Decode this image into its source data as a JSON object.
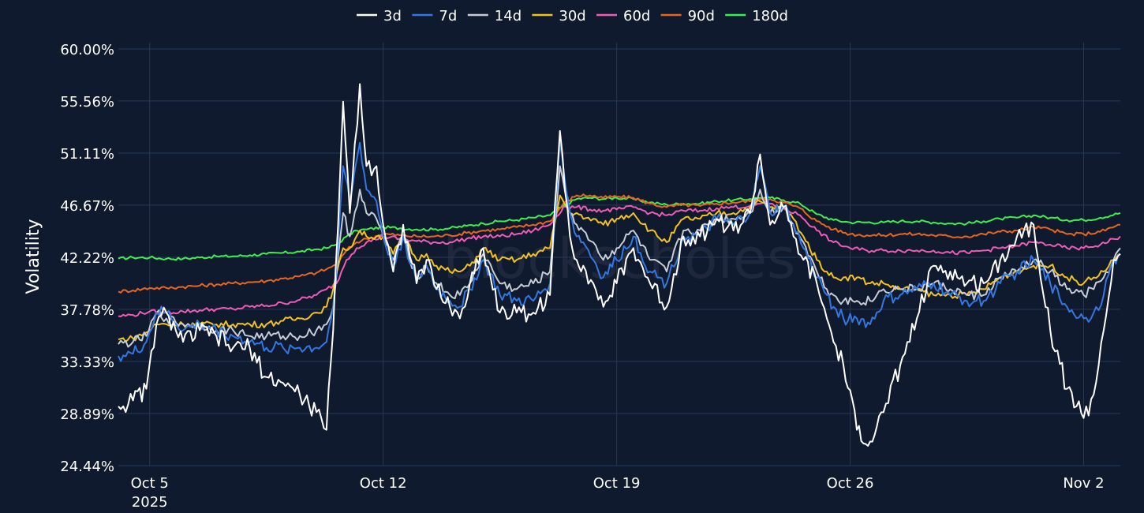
{
  "chart_data": {
    "type": "line",
    "title": "",
    "watermark": "blockscholes",
    "xlabel": "",
    "ylabel": "Volatility",
    "x_range": [
      4.06,
      34.1
    ],
    "ylim": [
      24.44,
      60.0
    ],
    "y_ticks": [
      {
        "value": 60.0,
        "label": "60.00%"
      },
      {
        "value": 55.56,
        "label": "55.56%"
      },
      {
        "value": 51.11,
        "label": "51.11%"
      },
      {
        "value": 46.67,
        "label": "46.67%"
      },
      {
        "value": 42.22,
        "label": "42.22%"
      },
      {
        "value": 37.78,
        "label": "37.78%"
      },
      {
        "value": 33.33,
        "label": "33.33%"
      },
      {
        "value": 28.89,
        "label": "28.89%"
      },
      {
        "value": 24.44,
        "label": "24.44%"
      }
    ],
    "x_ticks": [
      {
        "value": 5,
        "label": "Oct 5",
        "sublabel": "2025"
      },
      {
        "value": 12,
        "label": "Oct 12",
        "sublabel": ""
      },
      {
        "value": 19,
        "label": "Oct 19",
        "sublabel": ""
      },
      {
        "value": 26,
        "label": "Oct 26",
        "sublabel": ""
      },
      {
        "value": 33,
        "label": "Nov 2",
        "sublabel": ""
      }
    ],
    "x_unit": "day of October 2025",
    "legend_position": "top-center",
    "grid": true,
    "series": [
      {
        "name": "3d",
        "color": "#ffffff",
        "x": [
          4.06,
          4.5,
          4.9,
          5.2,
          5.5,
          6,
          6.5,
          7,
          7.5,
          8,
          8.5,
          9,
          9.5,
          10,
          10.3,
          10.5,
          10.8,
          11,
          11.3,
          11.5,
          11.8,
          12,
          12.3,
          12.6,
          13,
          13.3,
          13.6,
          14,
          14.3,
          14.6,
          15,
          15.5,
          16,
          16.5,
          17,
          17.3,
          17.6,
          17.8,
          18,
          18.3,
          18.6,
          19,
          19.5,
          20,
          20.5,
          21,
          21.5,
          22,
          22.5,
          23,
          23.3,
          23.6,
          24,
          24.3,
          24.6,
          25,
          25.3,
          25.5,
          25.8,
          26.2,
          26.6,
          27,
          27.5,
          28,
          28.5,
          29,
          29.5,
          30,
          30.5,
          31,
          31.5,
          32,
          32.5,
          33,
          33.3,
          33.6,
          33.9,
          34.1
        ],
        "values": [
          29.5,
          30,
          31,
          36.5,
          37.5,
          35,
          36,
          35.5,
          34.5,
          34.5,
          32,
          31.5,
          30.5,
          29,
          27.5,
          36,
          55.5,
          46,
          57,
          50,
          50,
          45,
          41,
          45,
          40,
          42,
          39.5,
          38,
          37,
          40,
          43,
          37.5,
          37.5,
          37.5,
          39,
          53,
          44,
          42,
          41.5,
          40,
          38,
          40,
          43,
          40,
          38,
          44,
          44,
          45.5,
          44.5,
          46,
          51,
          45,
          46.5,
          44,
          42,
          40,
          37,
          35,
          33,
          27.5,
          26.5,
          29,
          33,
          37,
          41.5,
          41,
          40,
          40,
          42,
          44,
          45,
          36,
          31,
          28.5,
          30.5,
          36,
          42,
          42.5
        ]
      },
      {
        "name": "7d",
        "color": "#3377e0",
        "x": [
          4.06,
          4.5,
          4.9,
          5.2,
          5.5,
          6,
          6.5,
          7,
          7.5,
          8,
          8.5,
          9,
          9.5,
          10,
          10.3,
          10.5,
          10.8,
          11,
          11.3,
          11.5,
          11.8,
          12,
          12.3,
          12.6,
          13,
          13.3,
          13.6,
          14,
          14.3,
          14.6,
          15,
          15.5,
          16,
          16.5,
          17,
          17.3,
          17.6,
          17.8,
          18,
          18.3,
          18.6,
          19,
          19.5,
          20,
          20.5,
          21,
          21.5,
          22,
          22.5,
          23,
          23.3,
          23.6,
          24,
          24.3,
          24.6,
          25,
          25.3,
          25.5,
          25.8,
          26.2,
          26.6,
          27,
          27.5,
          28,
          28.5,
          29,
          29.5,
          30,
          30.5,
          31,
          31.5,
          32,
          32.5,
          33,
          33.3,
          33.6,
          33.9,
          34.1
        ],
        "values": [
          33.8,
          34,
          35,
          37.5,
          37.5,
          36,
          36.5,
          36,
          35.5,
          35,
          34.5,
          34.5,
          34.5,
          34.5,
          35,
          38,
          50,
          47,
          52,
          48,
          47,
          44,
          41.5,
          44,
          40,
          41.5,
          39.5,
          38.5,
          38,
          39.5,
          42,
          39,
          38.5,
          38.5,
          40,
          52,
          46,
          44,
          43.5,
          42,
          40.5,
          42,
          44,
          41,
          40,
          44,
          44,
          45.5,
          45,
          46,
          50,
          46,
          46.5,
          45,
          43,
          40.5,
          39,
          38,
          37,
          37,
          36.5,
          38.5,
          39,
          39.5,
          40,
          39,
          38.5,
          38.5,
          40,
          41,
          42,
          40,
          38,
          37,
          37.5,
          39,
          42,
          42.5
        ]
      },
      {
        "name": "14d",
        "color": "#c6ccd6",
        "x": [
          4.06,
          4.5,
          4.9,
          5.2,
          5.5,
          6,
          6.5,
          7,
          7.5,
          8,
          8.5,
          9,
          9.5,
          10,
          10.3,
          10.5,
          10.8,
          11,
          11.3,
          11.5,
          11.8,
          12,
          12.3,
          12.6,
          13,
          13.3,
          13.6,
          14,
          14.3,
          14.6,
          15,
          15.5,
          16,
          16.5,
          17,
          17.3,
          17.6,
          17.8,
          18,
          18.3,
          18.6,
          19,
          19.5,
          20,
          20.5,
          21,
          21.5,
          22,
          22.5,
          23,
          23.3,
          23.6,
          24,
          24.3,
          24.6,
          25,
          25.3,
          25.5,
          25.8,
          26.2,
          26.6,
          27,
          27.5,
          28,
          28.5,
          29,
          29.5,
          30,
          30.5,
          31,
          31.5,
          32,
          32.5,
          33,
          33.3,
          33.6,
          33.9,
          34.1
        ],
        "values": [
          34.8,
          35,
          35.5,
          37.5,
          37,
          36.5,
          36.5,
          36,
          36,
          35.5,
          35.5,
          35.5,
          35.5,
          36,
          36.5,
          38,
          46,
          44,
          48,
          46,
          45.5,
          44,
          42,
          44,
          40.5,
          41.5,
          40,
          39,
          39,
          40,
          42.5,
          40,
          39.5,
          40,
          41,
          50,
          46,
          45,
          44.5,
          43.5,
          42,
          43,
          44.5,
          42,
          41,
          44.5,
          44.5,
          45.5,
          45.5,
          46,
          48,
          46,
          46.5,
          45,
          43.5,
          41,
          39.5,
          39,
          38.5,
          38.5,
          38.5,
          39.5,
          39.5,
          39.5,
          40,
          39.5,
          39,
          39,
          40.5,
          41,
          42,
          41,
          39.5,
          39,
          39.5,
          40.5,
          42,
          43
        ]
      },
      {
        "name": "30d",
        "color": "#f2c21b",
        "x": [
          4.06,
          4.5,
          4.9,
          5.2,
          5.5,
          6,
          6.5,
          7,
          7.5,
          8,
          8.5,
          9,
          9.5,
          10,
          10.3,
          10.5,
          10.8,
          11,
          11.3,
          11.5,
          11.8,
          12,
          12.3,
          12.6,
          13,
          13.3,
          13.6,
          14,
          14.3,
          14.6,
          15,
          15.5,
          16,
          16.5,
          17,
          17.3,
          17.6,
          17.8,
          18,
          18.3,
          18.6,
          19,
          19.5,
          20,
          20.5,
          21,
          21.5,
          22,
          22.5,
          23,
          23.3,
          23.6,
          24,
          24.3,
          24.6,
          25,
          25.3,
          25.5,
          25.8,
          26.2,
          26.6,
          27,
          27.5,
          28,
          28.5,
          29,
          29.5,
          30,
          30.5,
          31,
          31.5,
          32,
          32.5,
          33,
          33.3,
          33.6,
          33.9,
          34.1
        ],
        "values": [
          35.2,
          35.3,
          35.8,
          36.5,
          36.5,
          36.5,
          36.5,
          36.5,
          36.5,
          36.5,
          36.5,
          36.8,
          37,
          37.5,
          38,
          39.5,
          43,
          43,
          44.5,
          44,
          44,
          44,
          42.5,
          44,
          42,
          42.5,
          41.5,
          41,
          41,
          41.5,
          43,
          42,
          42,
          42.5,
          43,
          47.5,
          46,
          46,
          45.5,
          45.5,
          45,
          45.5,
          46,
          44.5,
          43.5,
          45.5,
          45.5,
          46,
          46,
          46.5,
          47,
          46.5,
          46.5,
          45.5,
          44,
          42,
          41,
          40.5,
          40.5,
          40.5,
          40,
          40,
          39.5,
          39.5,
          39,
          39,
          39,
          39.5,
          40.5,
          41,
          41.5,
          41.5,
          40.5,
          40,
          40.5,
          41,
          42,
          42.5
        ]
      },
      {
        "name": "60d",
        "color": "#f05bb5",
        "x": [
          4.06,
          4.5,
          5,
          5.5,
          6,
          6.5,
          7,
          7.5,
          8,
          8.5,
          9,
          9.5,
          10,
          10.3,
          10.6,
          10.9,
          11.2,
          11.5,
          12,
          12.5,
          13,
          13.5,
          14,
          14.5,
          15,
          15.5,
          16,
          16.5,
          17,
          17.4,
          17.8,
          18.2,
          18.6,
          19,
          19.5,
          20,
          20.5,
          21,
          21.5,
          22,
          22.5,
          23,
          23.3,
          23.6,
          24,
          24.5,
          25,
          25.5,
          26,
          26.5,
          27,
          27.5,
          28,
          28.5,
          29,
          29.5,
          30,
          30.5,
          31,
          31.5,
          32,
          32.5,
          33,
          33.5,
          34.1
        ],
        "values": [
          37.2,
          37.3,
          37.6,
          37.5,
          37.6,
          37.7,
          37.8,
          37.8,
          38,
          38.1,
          38.3,
          38.6,
          39,
          39.5,
          40,
          42,
          43,
          43.5,
          44,
          43.8,
          43.6,
          43.5,
          43.5,
          43.8,
          44,
          44,
          44.2,
          44.5,
          45,
          46.5,
          46.5,
          46.3,
          46.2,
          46.3,
          46.5,
          46,
          45.8,
          46.2,
          46.2,
          46.4,
          46.5,
          46.6,
          46.8,
          46.8,
          46.4,
          45.8,
          44.5,
          43.5,
          43,
          42.8,
          42.8,
          42.8,
          42.8,
          42.8,
          42.6,
          42.6,
          42.8,
          43,
          43.2,
          43.5,
          43.3,
          43,
          43,
          43.3,
          44
        ]
      },
      {
        "name": "90d",
        "color": "#e8661c",
        "x": [
          4.06,
          4.5,
          5,
          5.5,
          6,
          6.5,
          7,
          7.5,
          8,
          8.5,
          9,
          9.5,
          10,
          10.3,
          10.6,
          10.9,
          11.2,
          11.5,
          12,
          12.5,
          13,
          13.5,
          14,
          14.5,
          15,
          15.5,
          16,
          16.5,
          17,
          17.4,
          17.8,
          18.2,
          18.6,
          19,
          19.5,
          20,
          20.5,
          21,
          21.5,
          22,
          22.5,
          23,
          23.3,
          23.6,
          24,
          24.5,
          25,
          25.5,
          26,
          26.5,
          27,
          27.5,
          28,
          28.5,
          29,
          29.5,
          30,
          30.5,
          31,
          31.5,
          32,
          32.5,
          33,
          33.5,
          34.1
        ],
        "values": [
          39.3,
          39.4,
          39.6,
          39.6,
          39.7,
          39.8,
          39.9,
          40,
          40.1,
          40.2,
          40.4,
          40.6,
          40.9,
          41.2,
          41.6,
          42.8,
          43.5,
          43.8,
          44.2,
          44.1,
          44,
          44,
          44.1,
          44.3,
          44.5,
          44.6,
          44.8,
          45,
          45.3,
          46.8,
          47.5,
          47.5,
          47.3,
          47.4,
          47.3,
          46.8,
          46.5,
          46.7,
          46.6,
          46.8,
          46.9,
          47,
          47.2,
          47.2,
          46.9,
          46.4,
          45.3,
          44.6,
          44.2,
          44.1,
          44.1,
          44.2,
          44.2,
          44.1,
          44,
          44,
          44.2,
          44.4,
          44.5,
          44.8,
          44.6,
          44.2,
          44.2,
          44.4,
          45
        ]
      },
      {
        "name": "180d",
        "color": "#3df04e",
        "x": [
          4.06,
          4.5,
          5,
          5.5,
          6,
          6.5,
          7,
          7.5,
          8,
          8.5,
          9,
          9.5,
          10,
          10.3,
          10.6,
          10.9,
          11.2,
          11.5,
          12,
          12.5,
          13,
          13.5,
          14,
          14.5,
          15,
          15.5,
          16,
          16.5,
          17,
          17.4,
          17.8,
          18.2,
          18.6,
          19,
          19.5,
          20,
          20.5,
          21,
          21.5,
          22,
          22.5,
          23,
          23.3,
          23.6,
          24,
          24.5,
          25,
          25.5,
          26,
          26.5,
          27,
          27.5,
          28,
          28.5,
          29,
          29.5,
          30,
          30.5,
          31,
          31.5,
          32,
          32.5,
          33,
          33.5,
          34.1
        ],
        "values": [
          42.1,
          42.2,
          42.2,
          42.1,
          42.1,
          42.2,
          42.3,
          42.3,
          42.4,
          42.5,
          42.6,
          42.7,
          42.9,
          43,
          43.3,
          44,
          44.5,
          44.6,
          44.8,
          44.7,
          44.6,
          44.6,
          44.7,
          44.9,
          45.1,
          45.3,
          45.4,
          45.6,
          45.8,
          46.6,
          47.2,
          47.3,
          47.2,
          47.3,
          47.2,
          46.9,
          46.7,
          46.8,
          46.8,
          47,
          47.1,
          47.2,
          47.3,
          47.3,
          47.1,
          46.8,
          45.9,
          45.4,
          45.2,
          45.2,
          45.2,
          45.3,
          45.3,
          45.2,
          45.1,
          45.1,
          45.3,
          45.5,
          45.6,
          45.8,
          45.6,
          45.4,
          45.4,
          45.6,
          46
        ]
      }
    ]
  }
}
